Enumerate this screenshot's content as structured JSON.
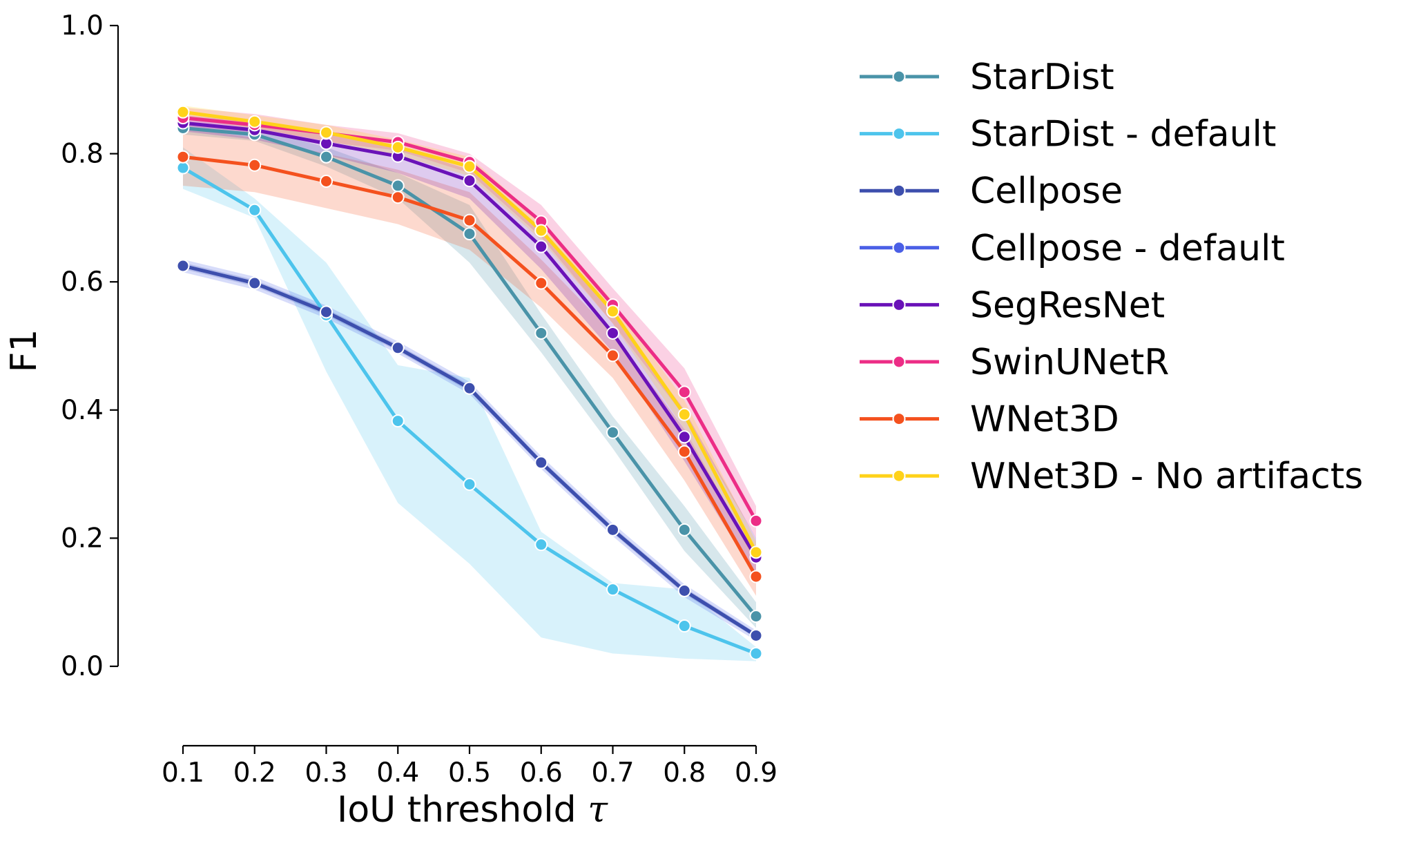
{
  "chart_data": {
    "type": "line",
    "title": "",
    "xlabel": "IoU threshold",
    "xlabel_symbol": "τ",
    "ylabel": "F1",
    "xlim": [
      0.1,
      0.9
    ],
    "ylim": [
      0.0,
      1.0
    ],
    "grid": false,
    "legend_position": "right, outside plot",
    "x": [
      0.1,
      0.2,
      0.3,
      0.4,
      0.5,
      0.6,
      0.7,
      0.8,
      0.9
    ],
    "x_tick_labels": [
      "0.1",
      "0.2",
      "0.3",
      "0.4",
      "0.5",
      "0.6",
      "0.7",
      "0.8",
      "0.9"
    ],
    "y_ticks": [
      0.0,
      0.2,
      0.4,
      0.6,
      0.8,
      1.0
    ],
    "y_tick_labels": [
      "0.0",
      "0.2",
      "0.4",
      "0.6",
      "0.8",
      "1.0"
    ],
    "series": [
      {
        "name": "StarDist",
        "color": "#4a93a8",
        "values": [
          0.84,
          0.83,
          0.795,
          0.75,
          0.675,
          0.52,
          0.365,
          0.213,
          0.078
        ],
        "lower": [
          0.83,
          0.82,
          0.78,
          0.73,
          0.63,
          0.49,
          0.34,
          0.18,
          0.06
        ],
        "upper": [
          0.85,
          0.84,
          0.81,
          0.77,
          0.72,
          0.55,
          0.39,
          0.25,
          0.1
        ]
      },
      {
        "name": "StarDist - default",
        "color": "#4dc4ec",
        "values": [
          0.778,
          0.712,
          0.548,
          0.383,
          0.284,
          0.19,
          0.12,
          0.063,
          0.02
        ],
        "lower": [
          0.745,
          0.7,
          0.46,
          0.255,
          0.16,
          0.045,
          0.02,
          0.012,
          0.008
        ],
        "upper": [
          0.81,
          0.73,
          0.63,
          0.47,
          0.45,
          0.21,
          0.13,
          0.12,
          0.03
        ]
      },
      {
        "name": "Cellpose",
        "color": "#3d4fad",
        "values": [
          0.625,
          0.598,
          0.553,
          0.497,
          0.434,
          0.318,
          0.213,
          0.118,
          0.048
        ],
        "lower": [
          0.62,
          0.593,
          0.548,
          0.492,
          0.429,
          0.313,
          0.208,
          0.113,
          0.044
        ],
        "upper": [
          0.63,
          0.603,
          0.558,
          0.502,
          0.439,
          0.323,
          0.218,
          0.123,
          0.052
        ]
      },
      {
        "name": "Cellpose - default",
        "color": "#4a5fe6",
        "values": [
          0.625,
          0.598,
          0.553,
          0.497,
          0.434,
          0.318,
          0.213,
          0.118,
          0.048
        ],
        "lower": [
          0.615,
          0.588,
          0.543,
          0.488,
          0.425,
          0.308,
          0.203,
          0.108,
          0.04
        ],
        "upper": [
          0.635,
          0.608,
          0.563,
          0.507,
          0.444,
          0.328,
          0.223,
          0.128,
          0.056
        ]
      },
      {
        "name": "SegResNet",
        "color": "#6a12b8",
        "values": [
          0.848,
          0.837,
          0.816,
          0.796,
          0.758,
          0.655,
          0.52,
          0.358,
          0.17
        ],
        "lower": [
          0.835,
          0.822,
          0.798,
          0.77,
          0.73,
          0.62,
          0.49,
          0.32,
          0.14
        ],
        "upper": [
          0.86,
          0.85,
          0.834,
          0.81,
          0.775,
          0.685,
          0.55,
          0.4,
          0.2
        ]
      },
      {
        "name": "SwinUNetR",
        "color": "#ec2d86",
        "values": [
          0.856,
          0.845,
          0.832,
          0.818,
          0.787,
          0.694,
          0.564,
          0.428,
          0.227
        ],
        "lower": [
          0.843,
          0.833,
          0.818,
          0.805,
          0.77,
          0.67,
          0.535,
          0.39,
          0.2
        ],
        "upper": [
          0.872,
          0.862,
          0.845,
          0.832,
          0.8,
          0.72,
          0.59,
          0.465,
          0.25
        ]
      },
      {
        "name": "WNet3D",
        "color": "#f4511e",
        "values": [
          0.795,
          0.782,
          0.757,
          0.732,
          0.696,
          0.598,
          0.485,
          0.335,
          0.14
        ],
        "lower": [
          0.75,
          0.74,
          0.715,
          0.69,
          0.65,
          0.56,
          0.45,
          0.29,
          0.11
        ],
        "upper": [
          0.84,
          0.825,
          0.8,
          0.775,
          0.74,
          0.635,
          0.52,
          0.37,
          0.17
        ]
      },
      {
        "name": "WNet3D - No artifacts",
        "color": "#ffd21a",
        "values": [
          0.865,
          0.85,
          0.833,
          0.81,
          0.78,
          0.68,
          0.554,
          0.393,
          0.178
        ],
        "lower": [
          0.855,
          0.84,
          0.82,
          0.798,
          0.765,
          0.665,
          0.535,
          0.37,
          0.16
        ],
        "upper": [
          0.875,
          0.86,
          0.845,
          0.822,
          0.795,
          0.695,
          0.57,
          0.415,
          0.195
        ]
      }
    ]
  }
}
